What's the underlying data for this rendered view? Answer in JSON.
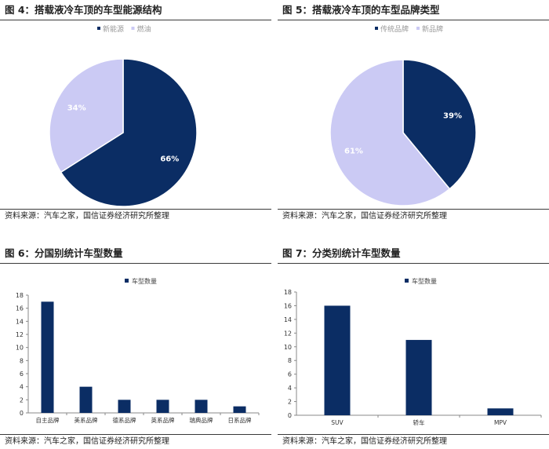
{
  "colors": {
    "navy": "#0b2d64",
    "lavender": "#cbcaf4",
    "axis": "#888888",
    "legend_text": "#999999"
  },
  "figures": [
    {
      "title": "图 4：搭载液冷车顶的车型能源结构",
      "source": "资料来源：汽车之家，国信证券经济研究所整理"
    },
    {
      "title": "图 5：搭载液冷车顶的车型品牌类型",
      "source": "资料来源：汽车之家，国信证券经济研究所整理"
    },
    {
      "title": "图 6：分国别统计车型数量",
      "source": "资料来源：汽车之家，国信证券经济研究所整理"
    },
    {
      "title": "图 7：分类别统计车型数量",
      "source": "资料来源：汽车之家，国信证券经济研究所整理"
    }
  ],
  "chart_data": [
    {
      "type": "pie",
      "title": "搭载液冷车顶的车型能源结构",
      "categories": [
        "新能源",
        "燃油"
      ],
      "values": [
        66,
        34
      ],
      "labels": [
        "66%",
        "34%"
      ],
      "legend": "top-left"
    },
    {
      "type": "pie",
      "title": "搭载液冷车顶的车型品牌类型",
      "categories": [
        "传统品牌",
        "新品牌"
      ],
      "values": [
        39,
        61
      ],
      "labels": [
        "39%",
        "61%"
      ],
      "legend": "top-left"
    },
    {
      "type": "bar",
      "title": "分国别统计车型数量",
      "series": [
        {
          "name": "车型数量",
          "values": [
            17,
            4,
            2,
            2,
            2,
            1
          ]
        }
      ],
      "categories": [
        "自主品牌",
        "美系品牌",
        "德系品牌",
        "英系品牌",
        "瑞典品牌",
        "日系品牌"
      ],
      "yticks": [
        "0",
        "2",
        "4",
        "6",
        "8",
        "10",
        "12",
        "14",
        "16",
        "18"
      ],
      "ylim": [
        0,
        18
      ],
      "legend": "top-left"
    },
    {
      "type": "bar",
      "title": "分类别统计车型数量",
      "series": [
        {
          "name": "车型数量",
          "values": [
            16,
            11,
            1
          ]
        }
      ],
      "categories": [
        "SUV",
        "轿车",
        "MPV"
      ],
      "yticks": [
        "0",
        "2",
        "4",
        "6",
        "8",
        "10",
        "12",
        "14",
        "16",
        "18"
      ],
      "ylim": [
        0,
        18
      ],
      "legend": "top-left"
    }
  ]
}
